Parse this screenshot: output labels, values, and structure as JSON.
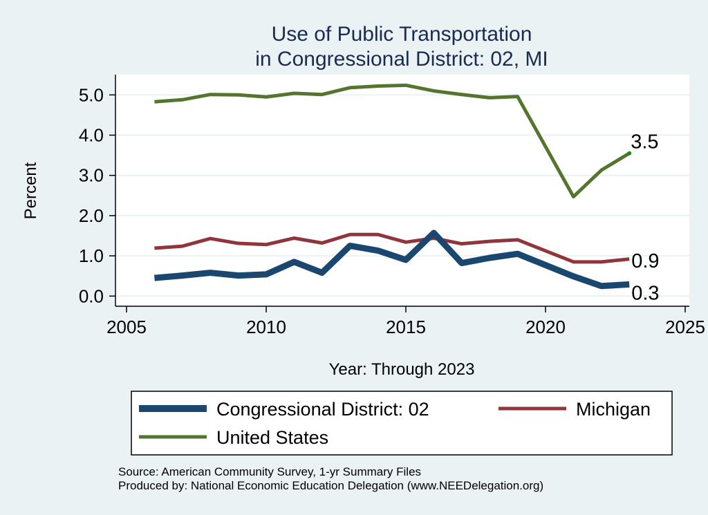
{
  "chart_data": {
    "type": "line",
    "title": "Use of Public Transportation",
    "subtitle": "in Congressional District: 02, MI",
    "xlabel": "Year: Through 2023",
    "ylabel": "Percent",
    "xlim": [
      2005,
      2025
    ],
    "ylim": [
      0,
      5.5
    ],
    "xticks": [
      2005,
      2010,
      2015,
      2020,
      2025
    ],
    "yticks": [
      0,
      1,
      2,
      3,
      4,
      5
    ],
    "ytick_labels": [
      "0.0",
      "1.0",
      "2.0",
      "3.0",
      "4.0",
      "5.0"
    ],
    "grid": true,
    "legend_position": "bottom",
    "series": [
      {
        "name": "Congressional District: 02",
        "color": "#1a476f",
        "x": [
          2006,
          2007,
          2008,
          2009,
          2010,
          2011,
          2012,
          2013,
          2014,
          2015,
          2016,
          2017,
          2018,
          2019,
          2021,
          2022,
          2023
        ],
        "values": [
          0.45,
          0.51,
          0.58,
          0.51,
          0.54,
          0.85,
          0.58,
          1.25,
          1.13,
          0.9,
          1.57,
          0.82,
          0.95,
          1.05,
          0.49,
          0.25,
          0.29
        ],
        "end_label": "0.3"
      },
      {
        "name": "Michigan",
        "color": "#90353b",
        "x": [
          2006,
          2007,
          2008,
          2009,
          2010,
          2011,
          2012,
          2013,
          2014,
          2015,
          2016,
          2017,
          2018,
          2019,
          2021,
          2022,
          2023
        ],
        "values": [
          1.19,
          1.24,
          1.43,
          1.31,
          1.28,
          1.44,
          1.32,
          1.53,
          1.53,
          1.34,
          1.44,
          1.3,
          1.36,
          1.4,
          0.85,
          0.85,
          0.92
        ],
        "end_label": "0.9"
      },
      {
        "name": "United States",
        "color": "#55752f",
        "x": [
          2006,
          2007,
          2008,
          2009,
          2010,
          2011,
          2012,
          2013,
          2014,
          2015,
          2016,
          2017,
          2018,
          2019,
          2021,
          2022,
          2023
        ],
        "values": [
          4.83,
          4.88,
          5.01,
          5.0,
          4.95,
          5.04,
          5.01,
          5.18,
          5.22,
          5.24,
          5.1,
          5.01,
          4.93,
          4.96,
          2.47,
          3.13,
          3.55
        ],
        "end_label": "3.5"
      }
    ],
    "notes": [
      "Source: American Community Survey, 1-yr Summary Files",
      "Produced by: National Economic Education Delegation (www.NEEDelegation.org)"
    ]
  }
}
